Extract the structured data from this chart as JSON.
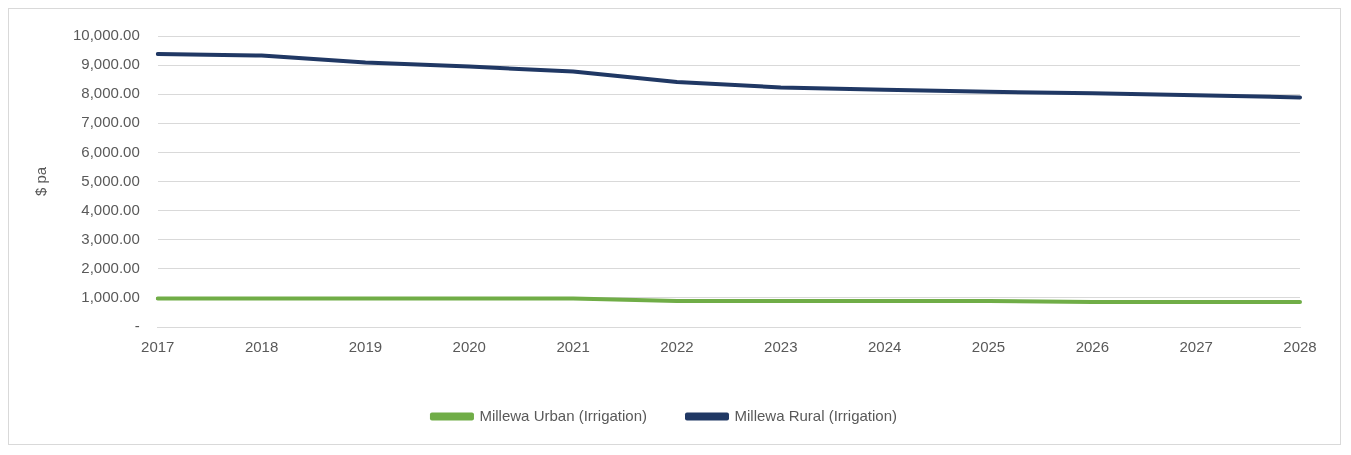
{
  "chart_data": {
    "type": "line",
    "ylabel": "$ pa",
    "categories": [
      "2017",
      "2018",
      "2019",
      "2020",
      "2021",
      "2022",
      "2023",
      "2024",
      "2025",
      "2026",
      "2027",
      "2028"
    ],
    "series": [
      {
        "name": "Millewa Urban (Irrigation)",
        "color": "#70ad47",
        "values": [
          980,
          980,
          980,
          980,
          980,
          890,
          890,
          890,
          890,
          860,
          860,
          860
        ]
      },
      {
        "name": "Millewa Rural (Irrigation)",
        "color": "#203864",
        "values": [
          9380,
          9330,
          9090,
          8950,
          8780,
          8420,
          8230,
          8150,
          8080,
          8030,
          7960,
          7890
        ]
      }
    ],
    "ylim": [
      0,
      10000
    ],
    "yticks": [
      {
        "value": 0,
        "label": "-"
      },
      {
        "value": 1000,
        "label": "1,000.00"
      },
      {
        "value": 2000,
        "label": "2,000.00"
      },
      {
        "value": 3000,
        "label": "3,000.00"
      },
      {
        "value": 4000,
        "label": "4,000.00"
      },
      {
        "value": 5000,
        "label": "5,000.00"
      },
      {
        "value": 6000,
        "label": "6,000.00"
      },
      {
        "value": 7000,
        "label": "7,000.00"
      },
      {
        "value": 8000,
        "label": "8,000.00"
      },
      {
        "value": 9000,
        "label": "9,000.00"
      },
      {
        "value": 10000,
        "label": "10,000.00"
      }
    ],
    "grid": "y",
    "legend": "bottom",
    "marker": "none",
    "line_style": "solid"
  }
}
